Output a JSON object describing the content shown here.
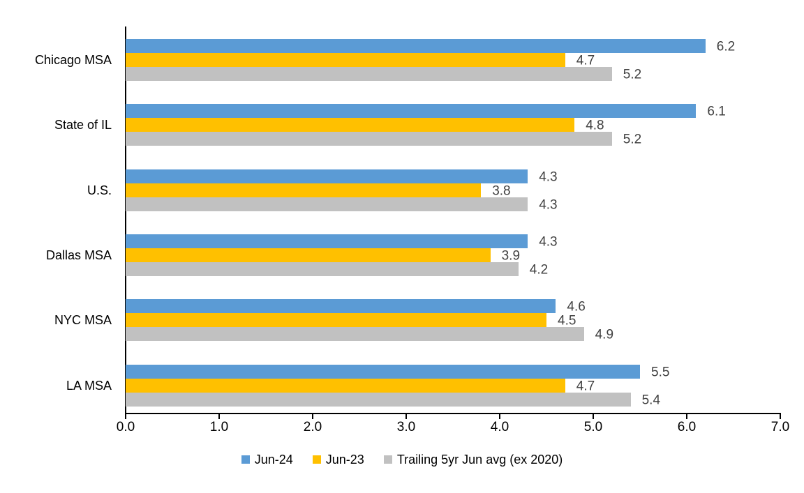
{
  "chart_data": {
    "type": "bar",
    "orientation": "horizontal",
    "title": "",
    "xlabel": "",
    "ylabel": "",
    "categories": [
      "Chicago MSA",
      "State of IL",
      "U.S.",
      "Dallas MSA",
      "NYC MSA",
      "LA MSA"
    ],
    "series": [
      {
        "name": "Jun-24",
        "color": "#5B9BD5",
        "values": [
          6.2,
          6.1,
          4.3,
          4.3,
          4.6,
          5.5
        ]
      },
      {
        "name": "Jun-23",
        "color": "#FFC000",
        "values": [
          4.7,
          4.8,
          3.8,
          3.9,
          4.5,
          4.7
        ]
      },
      {
        "name": "Trailing 5yr Jun avg (ex 2020)",
        "color": "#C1C1C1",
        "values": [
          5.2,
          5.2,
          4.3,
          4.2,
          4.9,
          5.4
        ]
      }
    ],
    "xlim": [
      0.0,
      7.0
    ],
    "x_tick_labels": [
      "0.0",
      "1.0",
      "2.0",
      "3.0",
      "4.0",
      "5.0",
      "6.0",
      "7.0"
    ],
    "grid": false,
    "legend_position": "bottom",
    "data_labels": true,
    "value_label_color": "#404040",
    "axis_color": "#000000",
    "background_color": "#FFFFFF"
  }
}
